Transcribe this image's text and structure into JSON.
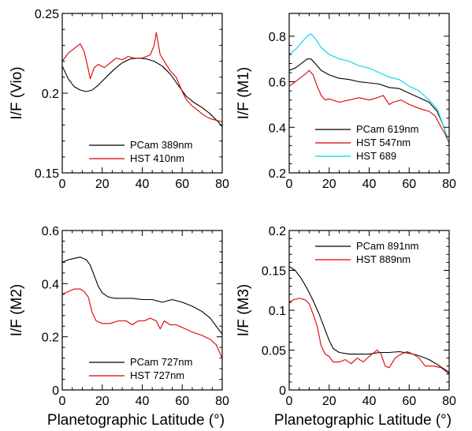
{
  "chart_data": [
    {
      "type": "line",
      "panel": "top-left",
      "ylabel": "I/F (Vio)",
      "xlabel": "",
      "xlim": [
        0,
        80
      ],
      "ylim": [
        0.15,
        0.25
      ],
      "xticks": [
        "0",
        "20",
        "40",
        "60",
        "80"
      ],
      "yticks": [
        {
          "v": 0.15,
          "t": "0.15"
        },
        {
          "v": 0.2,
          "t": "0.2"
        },
        {
          "v": 0.25,
          "t": "0.25"
        }
      ],
      "legend_position": "bottom-center",
      "series": [
        {
          "name": "PCam 389nm",
          "color": "#000000",
          "x": [
            0,
            3,
            6,
            9,
            12,
            15,
            18,
            22,
            26,
            30,
            34,
            38,
            42,
            46,
            50,
            54,
            58,
            62,
            66,
            70,
            74,
            78,
            80
          ],
          "y": [
            0.217,
            0.209,
            0.204,
            0.202,
            0.201,
            0.202,
            0.205,
            0.21,
            0.215,
            0.219,
            0.2215,
            0.222,
            0.2215,
            0.22,
            0.217,
            0.212,
            0.205,
            0.198,
            0.194,
            0.191,
            0.187,
            0.182,
            0.179
          ]
        },
        {
          "name": "HST 410nm",
          "color": "#dd0000",
          "x": [
            0,
            3,
            6,
            9,
            11,
            13,
            14,
            16,
            18,
            21,
            24,
            27,
            30,
            33,
            36,
            40,
            44,
            46,
            47,
            49,
            51,
            54,
            57,
            60,
            62,
            65,
            68,
            71,
            74,
            77,
            80
          ],
          "y": [
            0.22,
            0.225,
            0.228,
            0.231,
            0.226,
            0.215,
            0.209,
            0.216,
            0.218,
            0.216,
            0.219,
            0.222,
            0.221,
            0.223,
            0.222,
            0.222,
            0.224,
            0.23,
            0.238,
            0.224,
            0.22,
            0.214,
            0.21,
            0.201,
            0.196,
            0.192,
            0.189,
            0.186,
            0.184,
            0.183,
            0.182
          ]
        }
      ]
    },
    {
      "type": "line",
      "panel": "top-right",
      "ylabel": "I/F (M1)",
      "xlabel": "",
      "xlim": [
        0,
        80
      ],
      "ylim": [
        0.2,
        0.9
      ],
      "xticks": [
        "0",
        "20",
        "40",
        "60",
        "80"
      ],
      "yticks": [
        {
          "v": 0.2,
          "t": "0.2"
        },
        {
          "v": 0.4,
          "t": "0.4"
        },
        {
          "v": 0.6,
          "t": "0.6"
        },
        {
          "v": 0.8,
          "t": "0.8"
        }
      ],
      "legend_position": "bottom-center",
      "series": [
        {
          "name": "PCam 619nm",
          "color": "#000000",
          "x": [
            0,
            3,
            6,
            9,
            11,
            13,
            16,
            20,
            25,
            30,
            35,
            40,
            45,
            50,
            55,
            60,
            65,
            70,
            74,
            77,
            80
          ],
          "y": [
            0.65,
            0.66,
            0.68,
            0.7,
            0.7,
            0.68,
            0.65,
            0.63,
            0.615,
            0.61,
            0.6,
            0.595,
            0.59,
            0.575,
            0.57,
            0.55,
            0.53,
            0.51,
            0.47,
            0.41,
            0.33
          ]
        },
        {
          "name": "HST 547nm",
          "color": "#dd0000",
          "x": [
            0,
            3,
            6,
            9,
            10,
            12,
            14,
            16,
            18,
            20,
            25,
            30,
            35,
            40,
            44,
            47,
            50,
            52,
            56,
            60,
            63,
            66,
            70,
            73,
            76,
            78,
            80
          ],
          "y": [
            0.58,
            0.6,
            0.62,
            0.64,
            0.65,
            0.63,
            0.58,
            0.54,
            0.52,
            0.525,
            0.51,
            0.52,
            0.53,
            0.52,
            0.53,
            0.54,
            0.5,
            0.51,
            0.52,
            0.5,
            0.49,
            0.48,
            0.47,
            0.45,
            0.4,
            0.37,
            0.33
          ]
        },
        {
          "name": "HST 689",
          "color": "#00d4e6",
          "x": [
            0,
            3,
            6,
            9,
            11,
            13,
            16,
            20,
            25,
            30,
            35,
            40,
            45,
            50,
            55,
            60,
            65,
            70,
            74,
            77,
            80
          ],
          "y": [
            0.72,
            0.74,
            0.77,
            0.8,
            0.81,
            0.79,
            0.75,
            0.72,
            0.7,
            0.69,
            0.67,
            0.66,
            0.64,
            0.62,
            0.61,
            0.58,
            0.56,
            0.52,
            0.48,
            0.41,
            0.33
          ]
        }
      ]
    },
    {
      "type": "line",
      "panel": "bottom-left",
      "ylabel": "I/F (M2)",
      "xlabel": "Planetographic Latitude (°)",
      "xlim": [
        0,
        80
      ],
      "ylim": [
        0,
        0.6
      ],
      "xticks": [
        "0",
        "20",
        "40",
        "60",
        "80"
      ],
      "yticks": [
        {
          "v": 0,
          "t": "0"
        },
        {
          "v": 0.2,
          "t": "0.2"
        },
        {
          "v": 0.4,
          "t": "0.4"
        },
        {
          "v": 0.6,
          "t": "0.6"
        }
      ],
      "legend_position": "bottom-center",
      "series": [
        {
          "name": "PCam 727nm",
          "color": "#000000",
          "x": [
            0,
            3,
            6,
            9,
            12,
            14,
            16,
            18,
            20,
            23,
            26,
            30,
            35,
            40,
            45,
            50,
            55,
            60,
            65,
            70,
            74,
            77,
            80
          ],
          "y": [
            0.48,
            0.49,
            0.495,
            0.5,
            0.49,
            0.47,
            0.43,
            0.39,
            0.365,
            0.35,
            0.345,
            0.345,
            0.345,
            0.34,
            0.34,
            0.33,
            0.34,
            0.33,
            0.315,
            0.295,
            0.27,
            0.24,
            0.21
          ]
        },
        {
          "name": "HST 727nm",
          "color": "#dd0000",
          "x": [
            0,
            3,
            6,
            9,
            11,
            13,
            15,
            17,
            20,
            24,
            28,
            32,
            35,
            38,
            41,
            44,
            47,
            49,
            51,
            54,
            57,
            60,
            63,
            66,
            70,
            74,
            77,
            80
          ],
          "y": [
            0.36,
            0.37,
            0.38,
            0.38,
            0.37,
            0.35,
            0.29,
            0.26,
            0.25,
            0.25,
            0.26,
            0.26,
            0.245,
            0.26,
            0.26,
            0.27,
            0.26,
            0.23,
            0.26,
            0.245,
            0.245,
            0.235,
            0.225,
            0.215,
            0.205,
            0.19,
            0.17,
            0.12
          ]
        }
      ]
    },
    {
      "type": "line",
      "panel": "bottom-right",
      "ylabel": "I/F (M3)",
      "xlabel": "Planetographic Latitude (°)",
      "xlim": [
        0,
        80
      ],
      "ylim": [
        0,
        0.2
      ],
      "xticks": [
        "0",
        "20",
        "40",
        "60",
        "80"
      ],
      "yticks": [
        {
          "v": 0,
          "t": "0"
        },
        {
          "v": 0.05,
          "t": "0.05"
        },
        {
          "v": 0.1,
          "t": "0.1"
        },
        {
          "v": 0.15,
          "t": "0.15"
        },
        {
          "v": 0.2,
          "t": "0.2"
        }
      ],
      "legend_position": "top-right",
      "series": [
        {
          "name": "PCam 891nm",
          "color": "#000000",
          "x": [
            0,
            3,
            6,
            9,
            12,
            15,
            18,
            20,
            22,
            25,
            30,
            35,
            40,
            45,
            50,
            55,
            60,
            65,
            70,
            74,
            77,
            80
          ],
          "y": [
            0.155,
            0.15,
            0.14,
            0.127,
            0.112,
            0.095,
            0.075,
            0.062,
            0.052,
            0.047,
            0.045,
            0.045,
            0.045,
            0.047,
            0.047,
            0.048,
            0.046,
            0.043,
            0.038,
            0.032,
            0.027,
            0.022
          ]
        },
        {
          "name": "HST 889nm",
          "color": "#dd0000",
          "x": [
            0,
            2,
            5,
            8,
            10,
            12,
            14,
            16,
            18,
            20,
            22,
            25,
            28,
            31,
            34,
            37,
            40,
            44,
            46,
            48,
            50,
            53,
            56,
            59,
            62,
            65,
            68,
            72,
            76,
            80
          ],
          "y": [
            0.11,
            0.113,
            0.115,
            0.113,
            0.108,
            0.095,
            0.08,
            0.055,
            0.045,
            0.042,
            0.035,
            0.035,
            0.038,
            0.033,
            0.04,
            0.035,
            0.042,
            0.05,
            0.045,
            0.03,
            0.028,
            0.04,
            0.045,
            0.048,
            0.045,
            0.04,
            0.03,
            0.03,
            0.028,
            0.02
          ]
        }
      ]
    }
  ]
}
